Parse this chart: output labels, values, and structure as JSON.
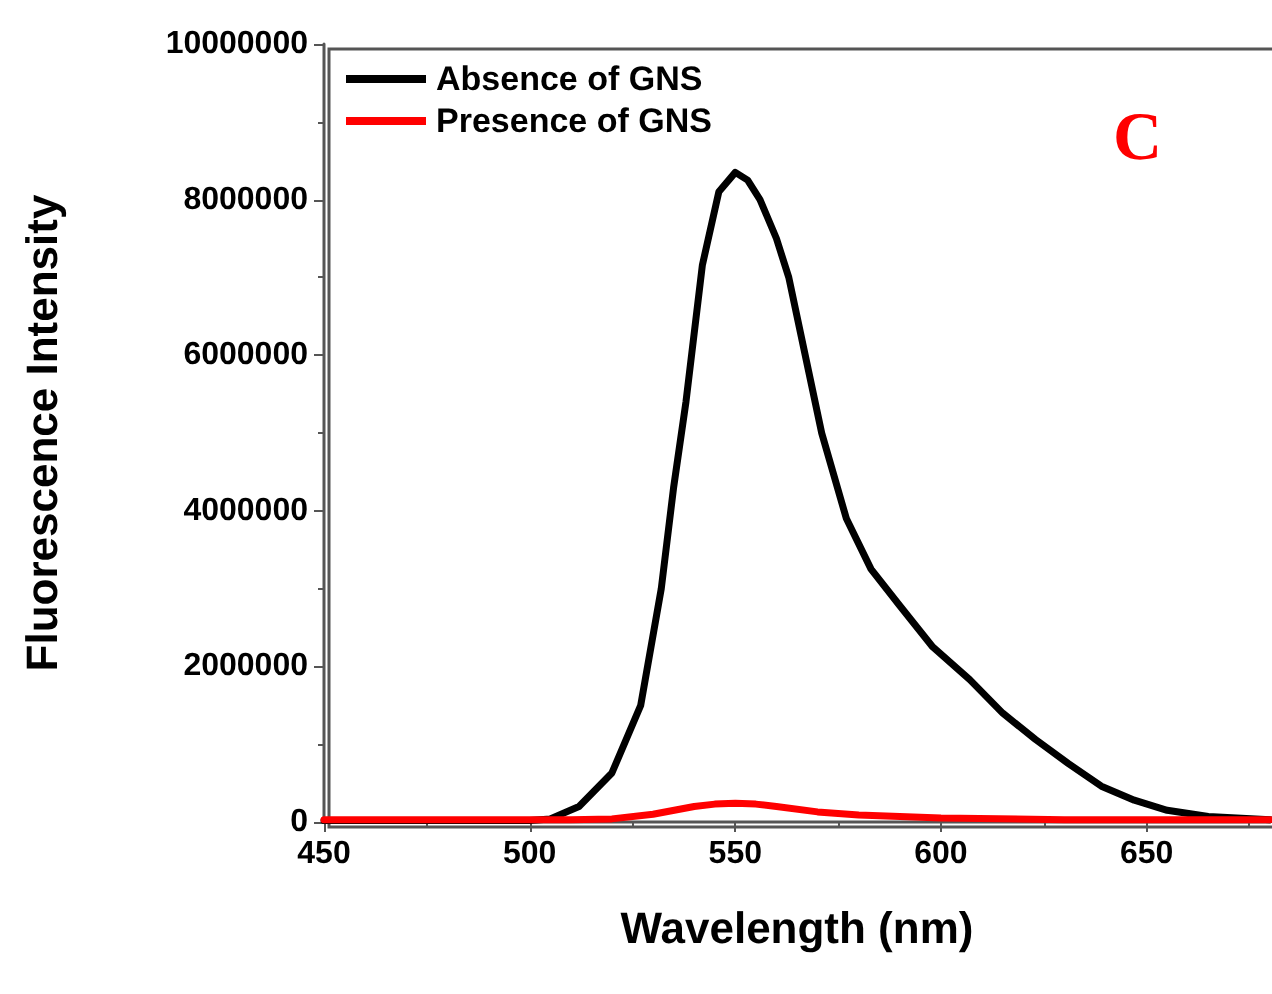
{
  "chart_data": {
    "type": "line",
    "xlabel": "Wavelength (nm)",
    "ylabel": "Fluorescence Intensity",
    "annotations": [
      "C"
    ],
    "xlim": [
      450,
      680
    ],
    "xticks": [
      450,
      500,
      550,
      600,
      650
    ],
    "ylim": [
      0,
      10000000
    ],
    "yticks": [
      0,
      2000000,
      4000000,
      6000000,
      8000000,
      10000000
    ],
    "grid": false,
    "legend": "top left",
    "marker": "none",
    "line_style": "solid",
    "series": [
      {
        "name": "Absence of GNS",
        "color": "#000000",
        "x": [
          450,
          470,
          490,
          500,
          505,
          512,
          520,
          527,
          532,
          535,
          538,
          542,
          546,
          550,
          553,
          556,
          560,
          563,
          567,
          571,
          577,
          583,
          590,
          598,
          607,
          615,
          623,
          631,
          639,
          647,
          655,
          665,
          680
        ],
        "values": [
          20000,
          20000,
          20000,
          20000,
          40000,
          200000,
          630000,
          1500000,
          3000000,
          4300000,
          5400000,
          7160000,
          8100000,
          8350000,
          8250000,
          8000000,
          7500000,
          7000000,
          6000000,
          5000000,
          3900000,
          3250000,
          2780000,
          2250000,
          1830000,
          1400000,
          1060000,
          750000,
          460000,
          280000,
          150000,
          70000,
          30000
        ]
      },
      {
        "name": "Presence of GNS",
        "color": "#ff0000",
        "x": [
          450,
          480,
          510,
          520,
          530,
          540,
          545,
          550,
          555,
          560,
          570,
          580,
          600,
          630,
          680
        ],
        "values": [
          30000,
          30000,
          30000,
          40000,
          100000,
          200000,
          230000,
          240000,
          230000,
          200000,
          130000,
          90000,
          50000,
          30000,
          30000
        ]
      }
    ]
  }
}
